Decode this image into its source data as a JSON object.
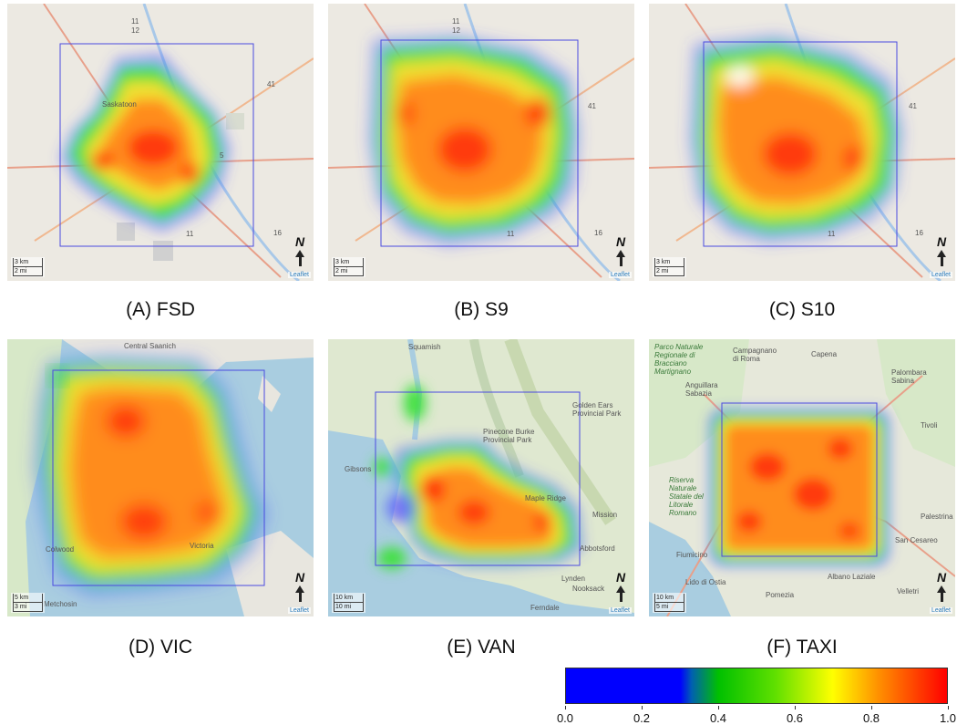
{
  "panels": [
    {
      "caption": "(A) FSD",
      "scale_km": "3 km",
      "scale_mi": "2 mi",
      "credit": "Leaflet",
      "north": "N",
      "labels": {
        "l1": "11",
        "l2": "12",
        "l3": "41",
        "l4": "5",
        "l5": "16",
        "l6": "11",
        "l7": "Saskatoon"
      }
    },
    {
      "caption": "(B) S9",
      "scale_km": "3 km",
      "scale_mi": "2 mi",
      "credit": "Leaflet",
      "north": "N",
      "labels": {
        "l1": "11",
        "l2": "12",
        "l3": "41",
        "l4": "16",
        "l5": "11"
      }
    },
    {
      "caption": "(C) S10",
      "scale_km": "3 km",
      "scale_mi": "2 mi",
      "credit": "Leaflet",
      "north": "N",
      "labels": {
        "l1": "41",
        "l2": "16",
        "l3": "11"
      }
    },
    {
      "caption": "(D) VIC",
      "scale_km": "5 km",
      "scale_mi": "3 mi",
      "credit": "Leaflet",
      "north": "N",
      "labels": {
        "l1": "Central Saanich",
        "l2": "Colwood",
        "l3": "Victoria",
        "l4": "Metchosin"
      }
    },
    {
      "caption": "(E) VAN",
      "scale_km": "10 km",
      "scale_mi": "10 mi",
      "credit": "Leaflet",
      "north": "N",
      "labels": {
        "l1": "Squamish",
        "l2": "Golden Ears Provincial Park",
        "l3": "Pinecone Burke Provincial Park",
        "l4": "Gibsons",
        "l5": "Maple Ridge",
        "l6": "Mission",
        "l7": "Abbotsford",
        "l8": "Lynden",
        "l9": "Nooksack",
        "l10": "Ferndale"
      }
    },
    {
      "caption": "(F) TAXI",
      "scale_km": "10 km",
      "scale_mi": "5 mi",
      "credit": "Leaflet",
      "north": "N",
      "labels": {
        "l1": "Parco Naturale Regionale di Bracciano Martignano",
        "l2": "Campagnano di Roma",
        "l3": "Capena",
        "l4": "Anguillara Sabazia",
        "l5": "Palombara Sabina",
        "l6": "Tivoli",
        "l7": "Riserva Naturale Statale del Litorale Romano",
        "l8": "Fiumicino",
        "l9": "Lido di Ostia",
        "l10": "Albano Laziale",
        "l11": "Velletri",
        "l12": "Pomezia",
        "l13": "San Cesareo",
        "l14": "Palestrina"
      }
    }
  ],
  "colorbar": {
    "ticks": [
      "0.0",
      "0.2",
      "0.4",
      "0.6",
      "0.8",
      "1.0"
    ],
    "colors": {
      "low": "#0000ff",
      "mid": "#00c000",
      "high": "#ff0000"
    }
  }
}
